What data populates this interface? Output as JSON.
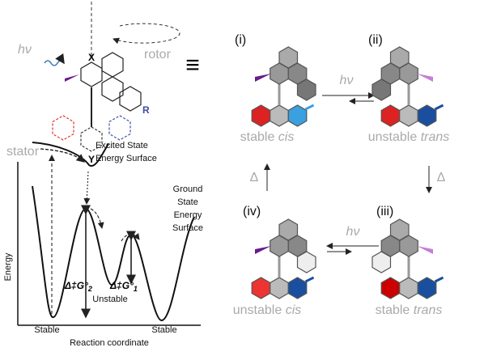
{
  "molecule": {
    "light": "hν",
    "rotor": "rotor",
    "stator": "stator",
    "x": "X",
    "y": "Y",
    "r": "R"
  },
  "equivalence": "≡",
  "energy_diagram": {
    "y_axis": "Energy",
    "x_axis": "Reaction coordinate",
    "excited_surface": [
      "Excited State",
      "Energy Surface"
    ],
    "ground_surface": [
      "Ground",
      "State",
      "Energy",
      "Surface"
    ],
    "minima": [
      "Stable",
      "Unstable",
      "Stable"
    ],
    "barriers": [
      {
        "symbol": "Δ‡G°",
        "sub": "2"
      },
      {
        "symbol": "Δ‡G°",
        "sub": "1"
      }
    ]
  },
  "cycle": {
    "states": [
      {
        "label": "(i)",
        "stability": "stable",
        "isomer": "cis"
      },
      {
        "label": "(ii)",
        "stability": "unstable",
        "isomer": "trans"
      },
      {
        "label": "(iii)",
        "stability": "stable",
        "isomer": "trans"
      },
      {
        "label": "(iv)",
        "stability": "unstable",
        "isomer": "cis"
      }
    ],
    "steps": [
      "hν",
      "Δ",
      "hν",
      "Δ"
    ]
  }
}
